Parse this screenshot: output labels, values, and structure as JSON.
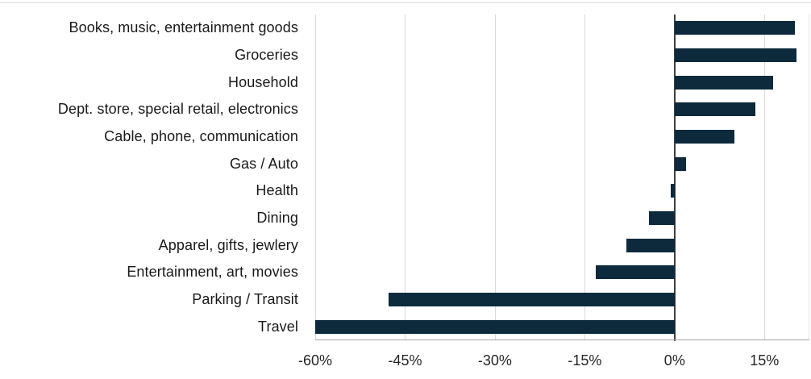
{
  "page": {
    "top_rule_color": "#d9d9d9",
    "background": "#ffffff"
  },
  "chart_data": {
    "type": "bar",
    "orientation": "horizontal",
    "title": "",
    "xlabel": "",
    "ylabel": "",
    "unit": "%",
    "categories": [
      "Books, music, entertainment goods",
      "Groceries",
      "Household",
      "Dept. store, special retail, electronics",
      "Cable, phone, communication",
      "Gas / Auto",
      "Health",
      "Dining",
      "Apparel, gifts, jewlery",
      "Entertainment, art, movies",
      "Parking / Transit",
      "Travel"
    ],
    "values": [
      20.1,
      20.3,
      16.5,
      13.5,
      10,
      1.9,
      -0.6,
      -4.3,
      -8,
      -13.1,
      -47.7,
      -60
    ],
    "x_ticks": [
      {
        "value": -60,
        "label": "-60%"
      },
      {
        "value": -45,
        "label": "-45%"
      },
      {
        "value": -30,
        "label": "-30%"
      },
      {
        "value": -15,
        "label": "-15%"
      },
      {
        "value": 0,
        "label": "0%"
      },
      {
        "value": 15,
        "label": "15%"
      }
    ],
    "xlim": [
      -60,
      22.5
    ],
    "grid": true,
    "legend": "none",
    "colors": {
      "bar": "#0d2a3d",
      "gridline": "#d9d9d9",
      "zero_line": "#404040",
      "axis_line": "#a6a6a6",
      "plot_border": "#e4e4e4",
      "category_text": "#1a1a1a",
      "tick_text": "#262626"
    }
  }
}
